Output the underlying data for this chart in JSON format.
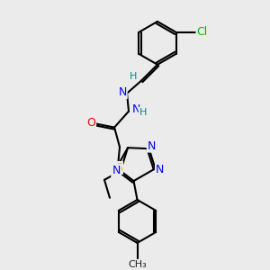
{
  "bg_color": "#ebebeb",
  "bond_color": "#000000",
  "atom_colors": {
    "N": "#0000ff",
    "O": "#ff0000",
    "S": "#cccc00",
    "Cl": "#00bb00",
    "C": "#000000",
    "H": "#008888"
  },
  "font_size": 9,
  "fig_size": [
    3.0,
    3.0
  ],
  "dpi": 100
}
